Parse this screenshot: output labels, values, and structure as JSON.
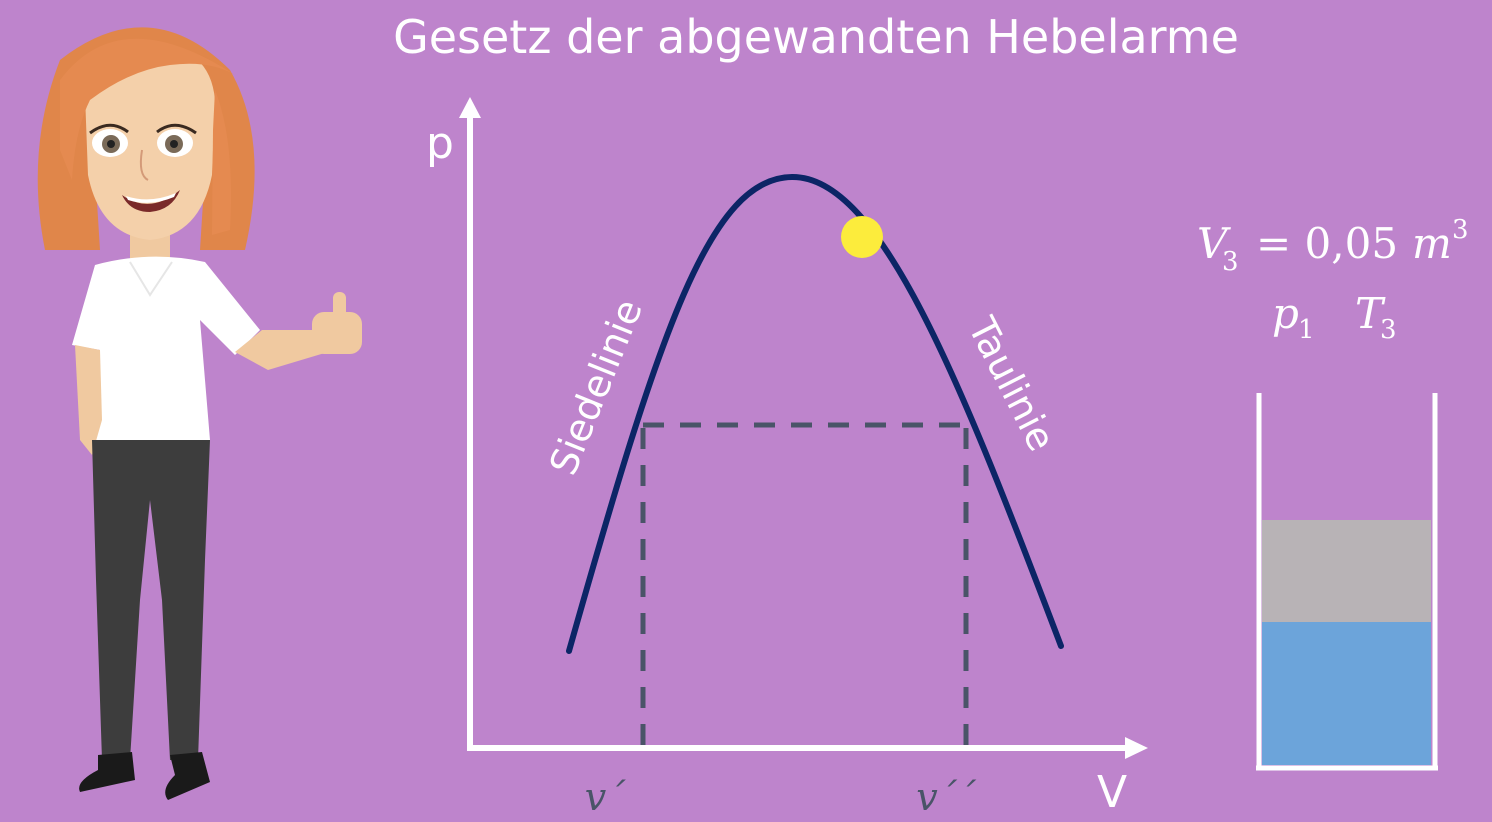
{
  "title": "Gesetz der abgewandten Hebelarme",
  "diagram": {
    "y_axis_label": "p",
    "x_axis_label": "V",
    "left_curve_label": "Siedelinie",
    "right_curve_label": "Taulinie",
    "x_tick_left": "v´",
    "x_tick_right": "v´´"
  },
  "side_panel": {
    "volume_var": "V",
    "volume_sub": "3",
    "volume_value": "= 0,05",
    "volume_unit": "m",
    "volume_unit_exp": "3",
    "pressure_var": "p",
    "pressure_sub": "1",
    "temperature_var": "T",
    "temperature_sub": "3"
  },
  "colors": {
    "background": "#be84cc",
    "curve": "#0c2566",
    "dashed": "#4a5468",
    "marker": "#fcec3c",
    "vapor": "#b8b3b6",
    "liquid": "#6ca4da",
    "axis": "#ffffff"
  },
  "icons": [
    "presenter-character"
  ]
}
